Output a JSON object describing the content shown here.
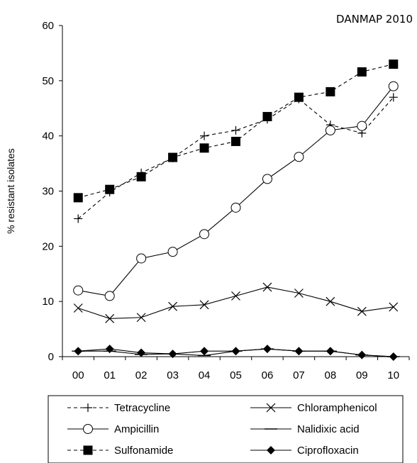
{
  "chart_data": {
    "type": "line",
    "title": "",
    "source_label": "DANMAP 2010",
    "xlabel": "",
    "ylabel": "% resistant isolates",
    "ylim": [
      0,
      60
    ],
    "yticks": [
      0,
      10,
      20,
      30,
      40,
      50,
      60
    ],
    "categories": [
      "00",
      "01",
      "02",
      "03",
      "04",
      "05",
      "06",
      "07",
      "08",
      "09",
      "10"
    ],
    "grid": false,
    "legend_position": "bottom",
    "series": [
      {
        "name": "Tetracycline",
        "line": "dashed",
        "marker": "plus",
        "values": [
          25,
          29.8,
          33.3,
          36,
          40,
          41,
          43,
          46.7,
          42,
          40.5,
          47
        ]
      },
      {
        "name": "Chloramphenicol",
        "line": "solid",
        "marker": "x",
        "values": [
          8.8,
          6.9,
          7.1,
          9.1,
          9.4,
          11,
          12.6,
          11.5,
          10,
          8.2,
          9
        ]
      },
      {
        "name": "Ampicillin",
        "line": "solid",
        "marker": "open-circle",
        "values": [
          12,
          11,
          17.8,
          19,
          22.2,
          27,
          32.2,
          36.2,
          41,
          41.8,
          49
        ]
      },
      {
        "name": "Nalidixic acid",
        "line": "solid",
        "marker": "long-dash",
        "values": [
          1,
          1,
          0.4,
          0.5,
          0.2,
          1,
          1.4,
          1,
          1,
          0.3,
          0
        ]
      },
      {
        "name": "Sulfonamide",
        "line": "dashed",
        "marker": "filled-square",
        "values": [
          28.8,
          30.3,
          32.6,
          36.1,
          37.8,
          39,
          43.5,
          47,
          48,
          51.6,
          53
        ]
      },
      {
        "name": "Ciprofloxacin",
        "line": "solid",
        "marker": "filled-diamond",
        "values": [
          1,
          1.4,
          0.7,
          0.5,
          1,
          1,
          1.4,
          1,
          1,
          0.3,
          0
        ]
      }
    ]
  }
}
